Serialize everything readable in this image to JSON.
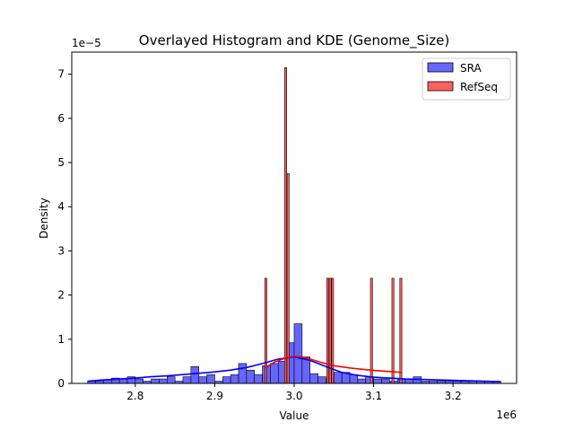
{
  "chart_data": {
    "type": "bar",
    "title": "Overlayed Histogram and KDE (Genome_Size)",
    "xlabel": "Value",
    "ylabel": "Density",
    "x_offset_label": "1e6",
    "y_offset_label": "1e−5",
    "xlim": [
      2720000,
      3280000
    ],
    "ylim": [
      0,
      7.5
    ],
    "x_ticks": [
      2800000,
      2900000,
      3000000,
      3100000,
      3200000
    ],
    "x_tick_labels": [
      "2.8",
      "2.9",
      "3.0",
      "3.1",
      "3.2"
    ],
    "y_ticks": [
      0,
      1,
      2,
      3,
      4,
      5,
      6,
      7
    ],
    "y_tick_labels": [
      "0",
      "1",
      "2",
      "3",
      "4",
      "5",
      "6",
      "7"
    ],
    "legend_position": "top-right",
    "grid": false,
    "series": [
      {
        "name": "SRA",
        "color": "#0000ff",
        "bar_fill": "#6666ff",
        "bin_width": 10000,
        "bins": [
          [
            2740000,
            0.05
          ],
          [
            2750000,
            0.05
          ],
          [
            2760000,
            0.08
          ],
          [
            2770000,
            0.12
          ],
          [
            2780000,
            0.1
          ],
          [
            2790000,
            0.15
          ],
          [
            2800000,
            0.1
          ],
          [
            2810000,
            0.05
          ],
          [
            2820000,
            0.1
          ],
          [
            2830000,
            0.1
          ],
          [
            2840000,
            0.15
          ],
          [
            2850000,
            0.05
          ],
          [
            2860000,
            0.15
          ],
          [
            2870000,
            0.38
          ],
          [
            2880000,
            0.15
          ],
          [
            2890000,
            0.2
          ],
          [
            2900000,
            0.05
          ],
          [
            2910000,
            0.15
          ],
          [
            2920000,
            0.2
          ],
          [
            2930000,
            0.45
          ],
          [
            2940000,
            0.3
          ],
          [
            2950000,
            0.2
          ],
          [
            2960000,
            0.4
          ],
          [
            2970000,
            0.45
          ],
          [
            2980000,
            0.5
          ],
          [
            2990000,
            0.92
          ],
          [
            3000000,
            1.35
          ],
          [
            3010000,
            0.6
          ],
          [
            3020000,
            0.22
          ],
          [
            3030000,
            0.15
          ],
          [
            3040000,
            0.1
          ],
          [
            3050000,
            0.25
          ],
          [
            3060000,
            0.25
          ],
          [
            3070000,
            0.2
          ],
          [
            3080000,
            0.1
          ],
          [
            3090000,
            0.15
          ],
          [
            3100000,
            0.1
          ],
          [
            3110000,
            0.1
          ],
          [
            3120000,
            0.05
          ],
          [
            3130000,
            0.1
          ],
          [
            3140000,
            0.1
          ],
          [
            3150000,
            0.15
          ],
          [
            3160000,
            0.05
          ],
          [
            3170000,
            0.05
          ],
          [
            3180000,
            0.05
          ],
          [
            3190000,
            0.05
          ],
          [
            3200000,
            0.05
          ],
          [
            3210000,
            0.05
          ],
          [
            3220000,
            0.05
          ],
          [
            3230000,
            0.05
          ],
          [
            3240000,
            0.05
          ],
          [
            3250000,
            0.05
          ]
        ],
        "kde": {
          "x": [
            2740000,
            2760000,
            2780000,
            2800000,
            2820000,
            2840000,
            2860000,
            2880000,
            2900000,
            2920000,
            2940000,
            2960000,
            2980000,
            3000000,
            3020000,
            3040000,
            3060000,
            3080000,
            3100000,
            3120000,
            3140000,
            3160000,
            3180000,
            3200000,
            3220000,
            3240000,
            3260000
          ],
          "y": [
            0.05,
            0.08,
            0.1,
            0.12,
            0.15,
            0.17,
            0.2,
            0.23,
            0.26,
            0.3,
            0.36,
            0.45,
            0.55,
            0.6,
            0.52,
            0.38,
            0.25,
            0.18,
            0.14,
            0.12,
            0.1,
            0.09,
            0.08,
            0.07,
            0.06,
            0.05,
            0.04
          ]
        }
      },
      {
        "name": "RefSeq",
        "color": "#ff0000",
        "bar_fill": "#ff5f5f",
        "bin_width": 2600,
        "bins": [
          [
            2963000,
            2.38
          ],
          [
            2988000,
            7.15
          ],
          [
            2991000,
            4.75
          ],
          [
            3041000,
            2.38
          ],
          [
            3044000,
            2.38
          ],
          [
            3047000,
            2.38
          ],
          [
            3096000,
            2.38
          ],
          [
            3123000,
            2.38
          ],
          [
            3133000,
            2.38
          ]
        ],
        "kde": {
          "x": [
            2963000,
            2975000,
            2990000,
            3000000,
            3010000,
            3020000,
            3035000,
            3050000,
            3070000,
            3090000,
            3110000,
            3135000
          ],
          "y": [
            0.35,
            0.48,
            0.58,
            0.62,
            0.6,
            0.55,
            0.47,
            0.4,
            0.35,
            0.31,
            0.28,
            0.25
          ]
        }
      }
    ]
  }
}
